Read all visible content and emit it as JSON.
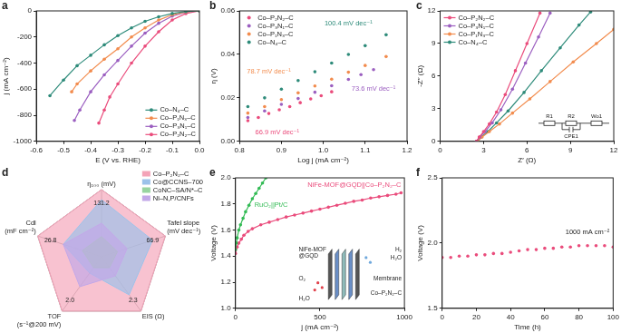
{
  "chart_data": [
    {
      "panel": "a",
      "type": "line",
      "x_label": "E (V vs. RHE)",
      "y_label": "j (mA cm⁻²)",
      "xlim": [
        -0.6,
        0
      ],
      "xticks": [
        -0.6,
        -0.5,
        -0.4,
        -0.3,
        -0.2,
        -0.1,
        {
          "value": 0,
          "label": "0.0"
        }
      ],
      "ylim": [
        -1000,
        0
      ],
      "yticks": [
        -1000,
        -800,
        -600,
        -400,
        -200,
        0
      ],
      "legend": "bottom right",
      "marker": "circle",
      "line_style": "solid",
      "series": [
        {
          "name": "Co–N₄–C",
          "color": "#2e8b7a",
          "x": [
            0,
            -0.05,
            -0.1,
            -0.15,
            -0.2,
            -0.25,
            -0.3,
            -0.35,
            -0.4,
            -0.45,
            -0.5,
            -0.55
          ],
          "values": [
            0,
            -5,
            -20,
            -45,
            -80,
            -130,
            -190,
            -260,
            -340,
            -420,
            -530,
            -650
          ]
        },
        {
          "name": "Co–P₁N₃–C",
          "color": "#f28c4e",
          "x": [
            0,
            -0.05,
            -0.1,
            -0.15,
            -0.2,
            -0.25,
            -0.3,
            -0.35,
            -0.4,
            -0.45,
            -0.47
          ],
          "values": [
            0,
            -8,
            -30,
            -70,
            -130,
            -200,
            -290,
            -370,
            -460,
            -560,
            -620
          ]
        },
        {
          "name": "Co–P₃N₁–C",
          "color": "#9b5fc0",
          "x": [
            0,
            -0.05,
            -0.1,
            -0.15,
            -0.2,
            -0.25,
            -0.3,
            -0.35,
            -0.4,
            -0.44,
            -0.46
          ],
          "values": [
            0,
            -10,
            -40,
            -95,
            -170,
            -270,
            -380,
            -490,
            -620,
            -760,
            -840
          ]
        },
        {
          "name": "Co–P₂N₂–C",
          "color": "#ea4c7c",
          "x": [
            0,
            -0.05,
            -0.1,
            -0.15,
            -0.2,
            -0.25,
            -0.3,
            -0.33,
            -0.35,
            -0.37
          ],
          "values": [
            0,
            -20,
            -70,
            -160,
            -270,
            -400,
            -560,
            -660,
            -760,
            -860
          ]
        }
      ]
    },
    {
      "panel": "b",
      "type": "line",
      "x_label": "Log j (mA cm⁻²)",
      "y_label": "η (V)",
      "xlim": [
        0.8,
        1.2
      ],
      "xticks": [
        0.8,
        0.9,
        {
          "value": 1,
          "label": "1.0"
        },
        1.1,
        1.2
      ],
      "ylim": [
        0,
        0.06
      ],
      "yticks": [
        {
          "value": 0,
          "label": "0.00"
        },
        {
          "value": 0.02,
          "label": "0.02"
        },
        {
          "value": 0.04,
          "label": "0.04"
        },
        {
          "value": 0.06,
          "label": "0.06"
        }
      ],
      "legend": "top left",
      "marker": "circle",
      "line_style": "none",
      "series": [
        {
          "name": "Co–P₂N₂–C",
          "color": "#ea4c7c",
          "x": [
            0.82,
            0.845,
            0.87,
            0.895,
            0.92,
            0.945,
            0.97,
            0.995,
            1.02
          ],
          "values": [
            0.0095,
            0.011,
            0.0128,
            0.0145,
            0.016,
            0.0178,
            0.0195,
            0.021,
            0.0228
          ]
        },
        {
          "name": "Co–P₃N₁–C",
          "color": "#9b5fc0",
          "x": [
            0.82,
            0.86,
            0.9,
            0.94,
            0.98,
            1.02,
            1.06,
            1.09,
            1.12
          ],
          "values": [
            0.011,
            0.014,
            0.017,
            0.0197,
            0.0226,
            0.0256,
            0.0285,
            0.0307,
            0.033
          ]
        },
        {
          "name": "Co–P₁N₃–C",
          "color": "#f28c4e",
          "x": [
            0.82,
            0.86,
            0.9,
            0.94,
            0.98,
            1.02,
            1.06,
            1.1,
            1.15
          ],
          "values": [
            0.013,
            0.016,
            0.0192,
            0.0223,
            0.0255,
            0.0286,
            0.0318,
            0.0349,
            0.039
          ]
        },
        {
          "name": "Co–N₄–C",
          "color": "#2e8b7a",
          "x": [
            0.82,
            0.86,
            0.9,
            0.94,
            0.98,
            1.02,
            1.06,
            1.1,
            1.15
          ],
          "values": [
            0.016,
            0.02,
            0.024,
            0.028,
            0.032,
            0.036,
            0.04,
            0.044,
            0.049
          ]
        }
      ],
      "annotations": [
        {
          "text": "100.4 mV dec⁻¹",
          "x": 1.06,
          "y": 0.054,
          "color": "#2e8b7a"
        },
        {
          "text": "78.7 mV dec⁻¹",
          "x": 0.87,
          "y": 0.032,
          "color": "#f28c4e"
        },
        {
          "text": "73.6 mV dec⁻¹",
          "x": 1.12,
          "y": 0.024,
          "color": "#9b5fc0"
        },
        {
          "text": "66.9 mV dec⁻¹",
          "x": 0.89,
          "y": 0.004,
          "color": "#ea4c7c"
        }
      ]
    },
    {
      "panel": "c",
      "type": "line",
      "x_label": "Z′ (Ω)",
      "y_label": "-Z″ (Ω)",
      "xlim": [
        0,
        12
      ],
      "xticks": [
        0,
        3,
        6,
        9,
        12
      ],
      "ylim": [
        0,
        12
      ],
      "yticks": [
        0,
        3,
        6,
        9,
        12
      ],
      "legend": "top left",
      "marker": "circle",
      "line_style": "solid",
      "series": [
        {
          "name": "Co–P₂N₂–C",
          "color": "#ea4c7c",
          "x": [
            2.5,
            2.7,
            3.0,
            3.4,
            3.9,
            4.5,
            5.2,
            6.0,
            6.9
          ],
          "values": [
            0,
            0.4,
            0.9,
            1.6,
            2.7,
            4.3,
            6.5,
            9.0,
            11.8
          ]
        },
        {
          "name": "Co–P₃N₁–C",
          "color": "#9b5fc0",
          "x": [
            2.5,
            2.75,
            3.1,
            3.6,
            4.2,
            5.0,
            5.9,
            6.8,
            7.6
          ],
          "values": [
            0,
            0.4,
            0.9,
            1.7,
            2.9,
            4.8,
            7.2,
            9.6,
            11.8
          ]
        },
        {
          "name": "Co–P₁N₃–C",
          "color": "#f28c4e",
          "x": [
            2.6,
            2.9,
            3.4,
            4.1,
            5.0,
            6.2,
            7.6,
            9.2,
            10.8,
            12
          ],
          "values": [
            0,
            0.4,
            0.9,
            1.6,
            2.6,
            3.9,
            5.5,
            7.3,
            9.0,
            10.3
          ]
        },
        {
          "name": "Co–N₄–C",
          "color": "#2e8b7a",
          "x": [
            2.6,
            2.85,
            3.3,
            3.9,
            4.7,
            5.8,
            7.0,
            8.3,
            9.6,
            10.4
          ],
          "values": [
            0,
            0.4,
            0.9,
            1.7,
            2.8,
            4.5,
            6.5,
            8.6,
            10.7,
            11.9
          ]
        }
      ],
      "inset_labels": [
        "R1",
        "R2",
        "CPE1",
        "Wo1"
      ]
    },
    {
      "panel": "d",
      "type": "radar",
      "axes": [
        "η₁₀₀ (mV)",
        "Tafel slope (mV dec⁻¹)",
        "EIS (Ω)",
        "TOF (s⁻¹@200 mV)",
        "Cdl (mF cm⁻²)"
      ],
      "axis_values": [
        131.2,
        66.9,
        2.3,
        {
          "value": 2,
          "label": "2.0"
        },
        26.8
      ],
      "rlim": [
        0,
        1
      ],
      "rticks": [
        0,
        1
      ],
      "tick_labels": false,
      "grid": true,
      "legend": "top right",
      "series": [
        {
          "name": "Co–P₂N₂–C",
          "color": "#f4a3b8",
          "values": [
            1,
            1,
            1,
            1,
            1
          ]
        },
        {
          "name": "Co@CCNS–700",
          "color": "#9cc2ea",
          "values": [
            0.85,
            0.8,
            0.7,
            0.3,
            0.6
          ]
        },
        {
          "name": "CoNC–SA/N*–C",
          "color": "#98d4a0",
          "values": [
            0.3,
            0.25,
            0.2,
            0.2,
            0.3
          ]
        },
        {
          "name": "Ni–N,P/CNFs",
          "color": "#c2a8e8",
          "values": [
            0.5,
            0.4,
            0.35,
            0.55,
            0.6
          ]
        }
      ]
    },
    {
      "panel": "e",
      "type": "line",
      "x_label": "j (mA cm⁻²)",
      "y_label": "Voltage (V)",
      "xlim": [
        0,
        1000
      ],
      "xticks": [
        0,
        500,
        1000
      ],
      "ylim": [
        1,
        2
      ],
      "yticks": [
        {
          "value": 1,
          "label": "1.0"
        },
        1.2,
        1.4,
        1.6,
        1.8,
        {
          "value": 2,
          "label": "2.0"
        }
      ],
      "legend": "inline",
      "marker": "circle",
      "line_style": "solid",
      "series": [
        {
          "name": "RuO₂||Pt/C",
          "color": "#33bb55",
          "x": [
            0,
            5,
            10,
            20,
            30,
            45,
            60,
            80,
            100,
            120,
            140,
            160,
            180
          ],
          "values": [
            1.45,
            1.5,
            1.54,
            1.6,
            1.64,
            1.69,
            1.74,
            1.79,
            1.84,
            1.88,
            1.92,
            1.96,
            2.0
          ]
        },
        {
          "name": "NiFe-MOF@GQD||Co–P₂N₂–C",
          "color": "#ea4c7c",
          "x": [
            0,
            10,
            20,
            35,
            50,
            75,
            100,
            150,
            200,
            250,
            300,
            350,
            400,
            450,
            500,
            550,
            600,
            650,
            700,
            750,
            800,
            850,
            900,
            950,
            980
          ],
          "values": [
            1.42,
            1.47,
            1.5,
            1.53,
            1.56,
            1.59,
            1.61,
            1.64,
            1.66,
            1.68,
            1.7,
            1.715,
            1.73,
            1.745,
            1.76,
            1.775,
            1.79,
            1.805,
            1.82,
            1.83,
            1.845,
            1.855,
            1.865,
            1.875,
            1.885
          ]
        }
      ],
      "inset_labels": [
        "NiFe-MOF@GQD",
        "Membrane",
        "Co–P₂N₂–C",
        "H₂",
        "H₂O",
        "O₂",
        "H₂O"
      ]
    },
    {
      "panel": "f",
      "type": "line",
      "x_label": "Time (h)",
      "y_label": "Voltage (V)",
      "xlim": [
        0,
        100
      ],
      "xticks": [
        0,
        20,
        40,
        60,
        80,
        100
      ],
      "ylim": [
        1.5,
        2.5
      ],
      "yticks": [
        1.5,
        {
          "value": 2,
          "label": "2.0"
        },
        2.5
      ],
      "color": "#ea4c7c",
      "marker": "circle",
      "line_style": "none",
      "x": [
        0,
        5,
        10,
        15,
        20,
        25,
        30,
        35,
        40,
        45,
        50,
        55,
        60,
        65,
        70,
        75,
        80,
        85,
        90,
        95,
        100
      ],
      "values": [
        1.89,
        1.89,
        1.9,
        1.9,
        1.91,
        1.91,
        1.92,
        1.92,
        1.93,
        1.94,
        1.95,
        1.95,
        1.96,
        1.96,
        1.97,
        1.97,
        1.98,
        1.98,
        1.98,
        1.98,
        1.97
      ],
      "annotations": [
        {
          "text": "1000 mA cm⁻²",
          "x": 85,
          "y": 2.08,
          "color": "#222222"
        }
      ]
    }
  ]
}
